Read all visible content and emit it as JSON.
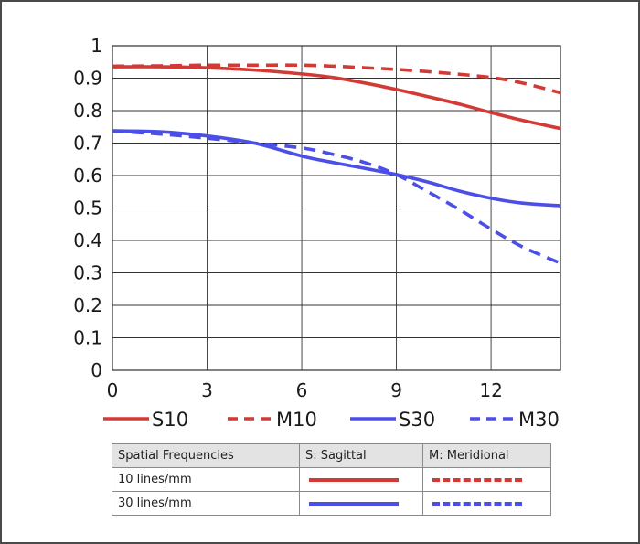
{
  "chart_data": {
    "type": "line",
    "title": "",
    "xlabel": "",
    "ylabel": "",
    "xlim": [
      0,
      14.2
    ],
    "ylim": [
      0,
      1
    ],
    "x_ticks": [
      "0",
      "3",
      "6",
      "9",
      "12"
    ],
    "y_ticks": [
      "0",
      "0.1",
      "0.2",
      "0.3",
      "0.4",
      "0.5",
      "0.6",
      "0.7",
      "0.8",
      "0.9",
      "1"
    ],
    "grid": true,
    "legend_position": "bottom",
    "series": [
      {
        "name": "S10",
        "color": "#d23a35",
        "dash": false,
        "x": [
          0,
          1.5,
          3,
          4.5,
          6,
          7,
          8,
          9,
          10,
          11,
          12,
          13,
          14.2
        ],
        "y": [
          0.935,
          0.935,
          0.932,
          0.925,
          0.913,
          0.902,
          0.885,
          0.865,
          0.843,
          0.82,
          0.794,
          0.77,
          0.745
        ]
      },
      {
        "name": "M10",
        "color": "#d23a35",
        "dash": true,
        "x": [
          0,
          1.5,
          3,
          4.5,
          6,
          7,
          8,
          9,
          10,
          11,
          12,
          13,
          14.2
        ],
        "y": [
          0.937,
          0.938,
          0.94,
          0.94,
          0.94,
          0.937,
          0.932,
          0.927,
          0.92,
          0.912,
          0.902,
          0.885,
          0.855
        ]
      },
      {
        "name": "S30",
        "color": "#4b4fe8",
        "dash": false,
        "x": [
          0,
          1.5,
          3,
          4.5,
          6,
          7,
          8,
          9,
          10,
          11,
          12,
          13,
          14.2
        ],
        "y": [
          0.738,
          0.735,
          0.722,
          0.7,
          0.66,
          0.64,
          0.622,
          0.603,
          0.58,
          0.552,
          0.53,
          0.515,
          0.507
        ]
      },
      {
        "name": "M30",
        "color": "#4b4fe8",
        "dash": true,
        "x": [
          0,
          1.5,
          3,
          4.5,
          6,
          7,
          8,
          9,
          10,
          11,
          12,
          13,
          14.2
        ],
        "y": [
          0.737,
          0.728,
          0.715,
          0.7,
          0.685,
          0.665,
          0.64,
          0.603,
          0.55,
          0.495,
          0.435,
          0.38,
          0.33
        ]
      }
    ]
  },
  "legend_table": {
    "headers": [
      "Spatial Frequencies",
      "S: Sagittal",
      "M: Meridional"
    ],
    "rows": [
      {
        "label": "10 lines/mm",
        "color": "#d23a35"
      },
      {
        "label": "30 lines/mm",
        "color": "#4b4fe8"
      }
    ]
  }
}
